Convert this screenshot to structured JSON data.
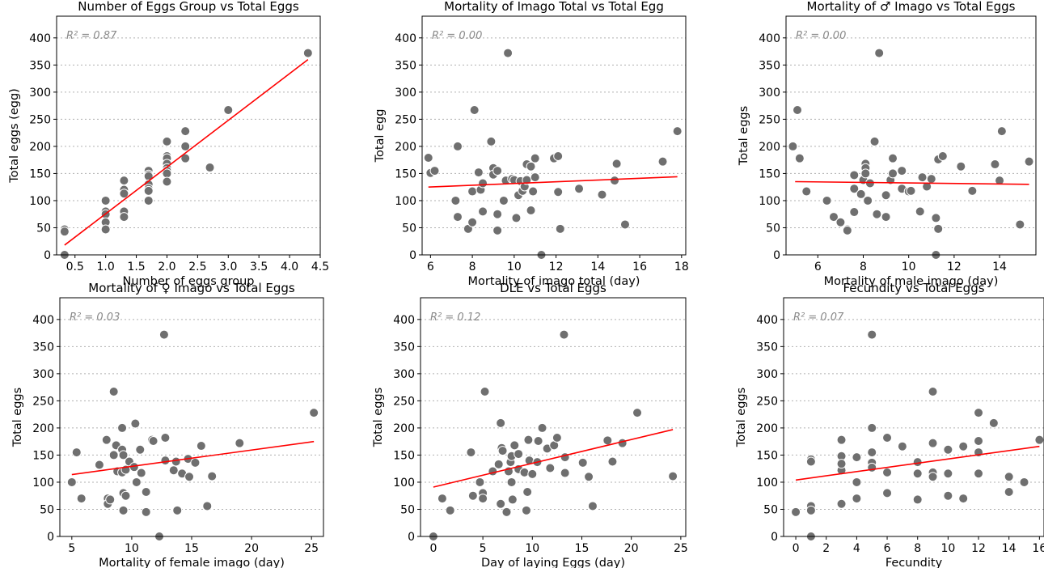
{
  "chart_data": [
    {
      "type": "scatter",
      "title": "Number of Eggs Group vs Total Eggs",
      "xlabel": "Number of eggs group",
      "ylabel": "Total eggs (egg)",
      "r2_label": "R² = 0.87",
      "xlim": [
        0.2,
        4.5
      ],
      "ylim": [
        0,
        440
      ],
      "xticks": [
        0.5,
        1.0,
        1.5,
        2.0,
        2.5,
        3.0,
        3.5,
        4.0,
        4.5
      ],
      "xtick_labels": [
        "0.5",
        "1.0",
        "1.5",
        "2.0",
        "2.5",
        "3.0",
        "3.5",
        "4.0",
        "4.5"
      ],
      "yticks": [
        0,
        50,
        100,
        150,
        200,
        250,
        300,
        350,
        400
      ],
      "ytick_labels": [
        "0",
        "50",
        "100",
        "150",
        "200",
        "250",
        "300",
        "350",
        "400"
      ],
      "grid": "y",
      "fit_line": {
        "x": [
          0.33,
          4.3
        ],
        "y": [
          18,
          360
        ]
      },
      "points": [
        [
          0.33,
          47
        ],
        [
          0.33,
          43
        ],
        [
          0.33,
          0
        ],
        [
          1.0,
          100
        ],
        [
          1.0,
          80
        ],
        [
          1.0,
          75
        ],
        [
          1.0,
          60
        ],
        [
          1.0,
          47
        ],
        [
          1.3,
          137
        ],
        [
          1.3,
          120
        ],
        [
          1.3,
          113
        ],
        [
          1.3,
          80
        ],
        [
          1.3,
          70
        ],
        [
          1.7,
          155
        ],
        [
          1.7,
          148
        ],
        [
          1.7,
          145
        ],
        [
          1.7,
          130
        ],
        [
          1.7,
          122
        ],
        [
          1.7,
          118
        ],
        [
          1.7,
          100
        ],
        [
          2.0,
          209
        ],
        [
          2.0,
          182
        ],
        [
          2.0,
          178
        ],
        [
          2.0,
          168
        ],
        [
          2.0,
          160
        ],
        [
          2.0,
          155
        ],
        [
          2.0,
          150
        ],
        [
          2.0,
          135
        ],
        [
          2.3,
          228
        ],
        [
          2.3,
          200
        ],
        [
          2.3,
          178
        ],
        [
          2.7,
          161
        ],
        [
          3.0,
          267
        ],
        [
          4.3,
          372
        ]
      ]
    },
    {
      "type": "scatter",
      "title": "Mortality of Imago Total vs Total Egg",
      "xlabel": "Mortality of imago total (day)",
      "ylabel": "Total egg",
      "r2_label": "R² = 0.00",
      "xlim": [
        5.6,
        18.2
      ],
      "ylim": [
        0,
        440
      ],
      "xticks": [
        6,
        8,
        10,
        12,
        14,
        16,
        18
      ],
      "xtick_labels": [
        "6",
        "8",
        "10",
        "12",
        "14",
        "16",
        "18"
      ],
      "yticks": [
        0,
        50,
        100,
        150,
        200,
        250,
        300,
        350,
        400
      ],
      "ytick_labels": [
        "0",
        "50",
        "100",
        "150",
        "200",
        "250",
        "300",
        "350",
        "400"
      ],
      "grid": "y",
      "fit_line": {
        "x": [
          5.9,
          17.8
        ],
        "y": [
          125,
          144
        ]
      },
      "points": [
        [
          5.9,
          179
        ],
        [
          6.0,
          151
        ],
        [
          6.2,
          155
        ],
        [
          7.2,
          100
        ],
        [
          7.3,
          200
        ],
        [
          7.3,
          70
        ],
        [
          7.8,
          48
        ],
        [
          8.0,
          60
        ],
        [
          8.0,
          117
        ],
        [
          8.1,
          267
        ],
        [
          8.3,
          152
        ],
        [
          8.4,
          120
        ],
        [
          8.5,
          132
        ],
        [
          8.5,
          80
        ],
        [
          8.9,
          209
        ],
        [
          9.0,
          160
        ],
        [
          9.0,
          148
        ],
        [
          9.2,
          155
        ],
        [
          9.2,
          75
        ],
        [
          9.2,
          45
        ],
        [
          9.5,
          100
        ],
        [
          9.6,
          137
        ],
        [
          9.7,
          372
        ],
        [
          9.9,
          140
        ],
        [
          10.0,
          138
        ],
        [
          10.1,
          68
        ],
        [
          10.2,
          110
        ],
        [
          10.3,
          136
        ],
        [
          10.4,
          118
        ],
        [
          10.5,
          126
        ],
        [
          10.6,
          138
        ],
        [
          10.6,
          167
        ],
        [
          10.8,
          163
        ],
        [
          10.8,
          82
        ],
        [
          10.9,
          117
        ],
        [
          11.0,
          143
        ],
        [
          11.0,
          178
        ],
        [
          11.3,
          0
        ],
        [
          11.9,
          178
        ],
        [
          12.1,
          182
        ],
        [
          12.1,
          116
        ],
        [
          12.2,
          48
        ],
        [
          13.1,
          122
        ],
        [
          14.2,
          111
        ],
        [
          14.8,
          137
        ],
        [
          14.9,
          168
        ],
        [
          15.3,
          56
        ],
        [
          17.1,
          172
        ],
        [
          17.8,
          228
        ]
      ]
    },
    {
      "type": "scatter",
      "title": "Mortality of ♂ Imago vs Total Eggs",
      "xlabel": "Mortality of male imago (day)",
      "ylabel": "Total eggs",
      "r2_label": "R² = 0.00",
      "xlim": [
        4.6,
        15.6
      ],
      "ylim": [
        0,
        440
      ],
      "xticks": [
        6,
        8,
        10,
        12,
        14
      ],
      "xtick_labels": [
        "6",
        "8",
        "10",
        "12",
        "14"
      ],
      "yticks": [
        0,
        50,
        100,
        150,
        200,
        250,
        300,
        350,
        400
      ],
      "ytick_labels": [
        "0",
        "50",
        "100",
        "150",
        "200",
        "250",
        "300",
        "350",
        "400"
      ],
      "grid": "y",
      "fit_line": {
        "x": [
          5.0,
          15.3
        ],
        "y": [
          135,
          130
        ]
      },
      "points": [
        [
          4.9,
          200
        ],
        [
          5.1,
          267
        ],
        [
          5.2,
          178
        ],
        [
          5.5,
          117
        ],
        [
          6.4,
          100
        ],
        [
          6.7,
          70
        ],
        [
          7.0,
          60
        ],
        [
          7.3,
          47
        ],
        [
          7.3,
          45
        ],
        [
          7.6,
          147
        ],
        [
          7.6,
          122
        ],
        [
          7.6,
          79
        ],
        [
          7.9,
          112
        ],
        [
          8.0,
          138
        ],
        [
          8.1,
          168
        ],
        [
          8.1,
          160
        ],
        [
          8.1,
          150
        ],
        [
          8.2,
          100
        ],
        [
          8.3,
          132
        ],
        [
          8.5,
          209
        ],
        [
          8.6,
          75
        ],
        [
          8.7,
          372
        ],
        [
          9.0,
          110
        ],
        [
          9.0,
          70
        ],
        [
          9.2,
          138
        ],
        [
          9.3,
          178
        ],
        [
          9.3,
          150
        ],
        [
          9.7,
          155
        ],
        [
          9.7,
          122
        ],
        [
          10.0,
          117
        ],
        [
          10.1,
          118
        ],
        [
          10.5,
          80
        ],
        [
          10.6,
          143
        ],
        [
          10.8,
          126
        ],
        [
          11.0,
          140
        ],
        [
          11.2,
          68
        ],
        [
          11.2,
          0
        ],
        [
          11.3,
          48
        ],
        [
          11.3,
          176
        ],
        [
          11.5,
          182
        ],
        [
          12.3,
          163
        ],
        [
          12.8,
          118
        ],
        [
          14.1,
          228
        ],
        [
          13.8,
          167
        ],
        [
          14.0,
          137
        ],
        [
          14.9,
          56
        ],
        [
          15.3,
          172
        ]
      ]
    },
    {
      "type": "scatter",
      "title": "Mortality of ♀ Imago vs Total Eggs",
      "xlabel": "Mortality of female imago (day)",
      "ylabel": "Total eggs",
      "r2_label": "R² = 0.03",
      "xlim": [
        4.0,
        26.0
      ],
      "ylim": [
        0,
        440
      ],
      "xticks": [
        5,
        10,
        15,
        20,
        25
      ],
      "xtick_labels": [
        "5",
        "10",
        "15",
        "20",
        "25"
      ],
      "yticks": [
        0,
        50,
        100,
        150,
        200,
        250,
        300,
        350,
        400
      ],
      "ytick_labels": [
        "0",
        "50",
        "100",
        "150",
        "200",
        "250",
        "300",
        "350",
        "400"
      ],
      "grid": "y",
      "fit_line": {
        "x": [
          5.0,
          25.2
        ],
        "y": [
          114,
          175
        ]
      },
      "points": [
        [
          5.0,
          100
        ],
        [
          5.4,
          155
        ],
        [
          5.8,
          70
        ],
        [
          7.3,
          132
        ],
        [
          7.9,
          178
        ],
        [
          8.0,
          70
        ],
        [
          8.0,
          60
        ],
        [
          8.2,
          68
        ],
        [
          8.5,
          267
        ],
        [
          8.5,
          150
        ],
        [
          8.7,
          168
        ],
        [
          8.8,
          120
        ],
        [
          9.2,
          200
        ],
        [
          9.2,
          160
        ],
        [
          9.3,
          150
        ],
        [
          9.2,
          118
        ],
        [
          9.3,
          80
        ],
        [
          9.3,
          48
        ],
        [
          9.5,
          75
        ],
        [
          9.5,
          123
        ],
        [
          9.8,
          138
        ],
        [
          10.2,
          128
        ],
        [
          10.3,
          208
        ],
        [
          10.4,
          100
        ],
        [
          10.7,
          160
        ],
        [
          10.8,
          117
        ],
        [
          11.2,
          82
        ],
        [
          11.2,
          45
        ],
        [
          11.7,
          178
        ],
        [
          11.8,
          176
        ],
        [
          12.3,
          0
        ],
        [
          12.7,
          372
        ],
        [
          12.8,
          140
        ],
        [
          12.8,
          182
        ],
        [
          13.5,
          122
        ],
        [
          13.7,
          138
        ],
        [
          13.8,
          48
        ],
        [
          14.2,
          116
        ],
        [
          14.7,
          143
        ],
        [
          14.8,
          110
        ],
        [
          15.3,
          136
        ],
        [
          15.8,
          167
        ],
        [
          16.3,
          56
        ],
        [
          16.7,
          111
        ],
        [
          19.0,
          172
        ],
        [
          25.2,
          228
        ]
      ]
    },
    {
      "type": "scatter",
      "title": "DLE vs Total Eggs",
      "xlabel": "Day of laying Eggs (day)",
      "ylabel": "Total eggs",
      "r2_label": "R² = 0.12",
      "xlim": [
        -1.3,
        25.5
      ],
      "ylim": [
        0,
        440
      ],
      "xticks": [
        0,
        5,
        10,
        15,
        20,
        25
      ],
      "xtick_labels": [
        "0",
        "5",
        "10",
        "15",
        "20",
        "25"
      ],
      "yticks": [
        0,
        50,
        100,
        150,
        200,
        250,
        300,
        350,
        400
      ],
      "ytick_labels": [
        "0",
        "50",
        "100",
        "150",
        "200",
        "250",
        "300",
        "350",
        "400"
      ],
      "grid": "y",
      "fit_line": {
        "x": [
          0.0,
          24.2
        ],
        "y": [
          91,
          197
        ]
      },
      "points": [
        [
          0.0,
          0
        ],
        [
          0.9,
          70
        ],
        [
          1.7,
          48
        ],
        [
          3.8,
          155
        ],
        [
          4.0,
          75
        ],
        [
          4.7,
          100
        ],
        [
          5.0,
          80
        ],
        [
          5.0,
          70
        ],
        [
          5.2,
          267
        ],
        [
          6.0,
          120
        ],
        [
          6.6,
          133
        ],
        [
          6.8,
          209
        ],
        [
          6.8,
          60
        ],
        [
          6.9,
          163
        ],
        [
          7.0,
          158
        ],
        [
          7.4,
          45
        ],
        [
          7.6,
          120
        ],
        [
          7.8,
          137
        ],
        [
          7.9,
          148
        ],
        [
          7.9,
          100
        ],
        [
          8.0,
          68
        ],
        [
          8.2,
          168
        ],
        [
          8.6,
          152
        ],
        [
          8.6,
          124
        ],
        [
          9.2,
          118
        ],
        [
          9.4,
          48
        ],
        [
          9.5,
          82
        ],
        [
          9.6,
          178
        ],
        [
          9.7,
          140
        ],
        [
          10.0,
          115
        ],
        [
          10.6,
          176
        ],
        [
          10.5,
          137
        ],
        [
          11.0,
          200
        ],
        [
          11.5,
          162
        ],
        [
          11.8,
          126
        ],
        [
          12.2,
          168
        ],
        [
          12.5,
          182
        ],
        [
          13.2,
          372
        ],
        [
          13.3,
          146
        ],
        [
          13.3,
          117
        ],
        [
          15.1,
          136
        ],
        [
          15.7,
          110
        ],
        [
          16.1,
          56
        ],
        [
          17.6,
          177
        ],
        [
          18.1,
          138
        ],
        [
          19.1,
          172
        ],
        [
          20.6,
          228
        ],
        [
          24.2,
          111
        ]
      ]
    },
    {
      "type": "scatter",
      "title": "Fecundity vs Total Eggs",
      "xlabel": "Fecundity",
      "ylabel": "Total eggs",
      "r2_label": "R² = 0.07",
      "xlim": [
        -0.8,
        16.3
      ],
      "ylim": [
        0,
        440
      ],
      "xticks": [
        0,
        2,
        4,
        6,
        8,
        10,
        12,
        14,
        16
      ],
      "xtick_labels": [
        "0",
        "2",
        "4",
        "6",
        "8",
        "10",
        "12",
        "14",
        "16"
      ],
      "yticks": [
        0,
        50,
        100,
        150,
        200,
        250,
        300,
        350,
        400
      ],
      "ytick_labels": [
        "0",
        "50",
        "100",
        "150",
        "200",
        "250",
        "300",
        "350",
        "400"
      ],
      "grid": "y",
      "fit_line": {
        "x": [
          0.0,
          16.0
        ],
        "y": [
          104,
          166
        ]
      },
      "points": [
        [
          0,
          45
        ],
        [
          1,
          142
        ],
        [
          1,
          138
        ],
        [
          1,
          56
        ],
        [
          1,
          48
        ],
        [
          1,
          0
        ],
        [
          3,
          178
        ],
        [
          3,
          148
        ],
        [
          3,
          122
        ],
        [
          3,
          134
        ],
        [
          3,
          60
        ],
        [
          4,
          146
        ],
        [
          4,
          100
        ],
        [
          4,
          70
        ],
        [
          5,
          372
        ],
        [
          5,
          200
        ],
        [
          5,
          155
        ],
        [
          5,
          136
        ],
        [
          5,
          127
        ],
        [
          6,
          182
        ],
        [
          6,
          118
        ],
        [
          6,
          80
        ],
        [
          7,
          166
        ],
        [
          8,
          137
        ],
        [
          8,
          116
        ],
        [
          8,
          68
        ],
        [
          9,
          267
        ],
        [
          9,
          172
        ],
        [
          9,
          118
        ],
        [
          9,
          110
        ],
        [
          10,
          160
        ],
        [
          10,
          116
        ],
        [
          10,
          75
        ],
        [
          11,
          166
        ],
        [
          11,
          70
        ],
        [
          12,
          228
        ],
        [
          12,
          176
        ],
        [
          12,
          155
        ],
        [
          12,
          116
        ],
        [
          13,
          209
        ],
        [
          14,
          110
        ],
        [
          14,
          82
        ],
        [
          15,
          100
        ],
        [
          16,
          178
        ]
      ]
    }
  ]
}
